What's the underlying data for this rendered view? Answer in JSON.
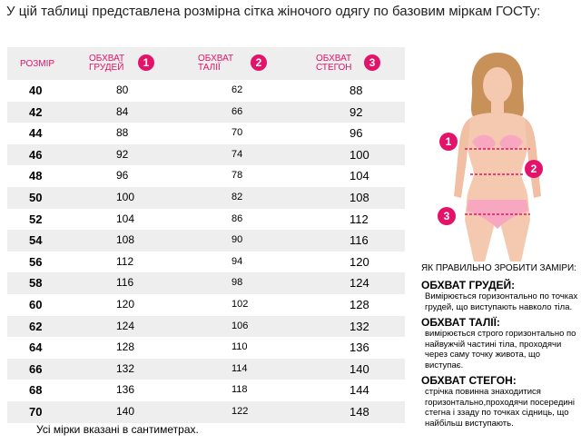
{
  "title": "У цій таблиці представлена розмірна сітка жіночого одягу по базовим міркам ГОСТу:",
  "table": {
    "headers": {
      "size": "РОЗМІР",
      "bust": "ОБХВАТ ГРУДЕЙ",
      "bust_num": "1",
      "waist": "ОБХВАТ ТАЛІЇ",
      "waist_num": "2",
      "hip": "ОБХВАТ СТЕГОН",
      "hip_num": "3"
    },
    "rows": [
      {
        "size": "40",
        "bust": "80",
        "waist": "62",
        "hip": "88"
      },
      {
        "size": "42",
        "bust": "84",
        "waist": "66",
        "hip": "92"
      },
      {
        "size": "44",
        "bust": "88",
        "waist": "70",
        "hip": "96"
      },
      {
        "size": "46",
        "bust": "92",
        "waist": "74",
        "hip": "100"
      },
      {
        "size": "48",
        "bust": "96",
        "waist": "78",
        "hip": "104"
      },
      {
        "size": "50",
        "bust": "100",
        "waist": "82",
        "hip": "108"
      },
      {
        "size": "52",
        "bust": "104",
        "waist": "86",
        "hip": "112"
      },
      {
        "size": "54",
        "bust": "108",
        "waist": "90",
        "hip": "116"
      },
      {
        "size": "56",
        "bust": "112",
        "waist": "94",
        "hip": "120"
      },
      {
        "size": "58",
        "bust": "116",
        "waist": "98",
        "hip": "124"
      },
      {
        "size": "60",
        "bust": "120",
        "waist": "102",
        "hip": "128"
      },
      {
        "size": "62",
        "bust": "124",
        "waist": "106",
        "hip": "132"
      },
      {
        "size": "64",
        "bust": "128",
        "waist": "110",
        "hip": "136"
      },
      {
        "size": "66",
        "bust": "132",
        "waist": "114",
        "hip": "140"
      },
      {
        "size": "68",
        "bust": "136",
        "waist": "118",
        "hip": "144"
      },
      {
        "size": "70",
        "bust": "140",
        "waist": "122",
        "hip": "148"
      }
    ]
  },
  "note": "Усі мірки вказані в сантиметрах.",
  "figure": {
    "marker1": "1",
    "marker2": "2",
    "marker3": "3"
  },
  "howto": {
    "question": "ЯК ПРАВИЛЬНО ЗРОБИТИ ЗАМІРИ:",
    "bust_title": "ОБХВАТ ГРУДЕЙ:",
    "bust_text": "Вимірюється горизонтально по точках грудей, що виступають навколо тіла.",
    "waist_title": "ОБХВАТ ТАЛІЇ:",
    "waist_text": "вимірюється строго горизонтально по найвужчій частині тіла, проходячи через саму точку живота, що виступає.",
    "hip_title": "ОБХВАТ СТЕГОН:",
    "hip_text": "стрічка повинна знаходитися горизонтально,проходячи посередині стегна і ззаду по точках сідниць, що найбільш виступають."
  },
  "colors": {
    "accent": "#e3136a",
    "stripe": "#eeeeee"
  }
}
